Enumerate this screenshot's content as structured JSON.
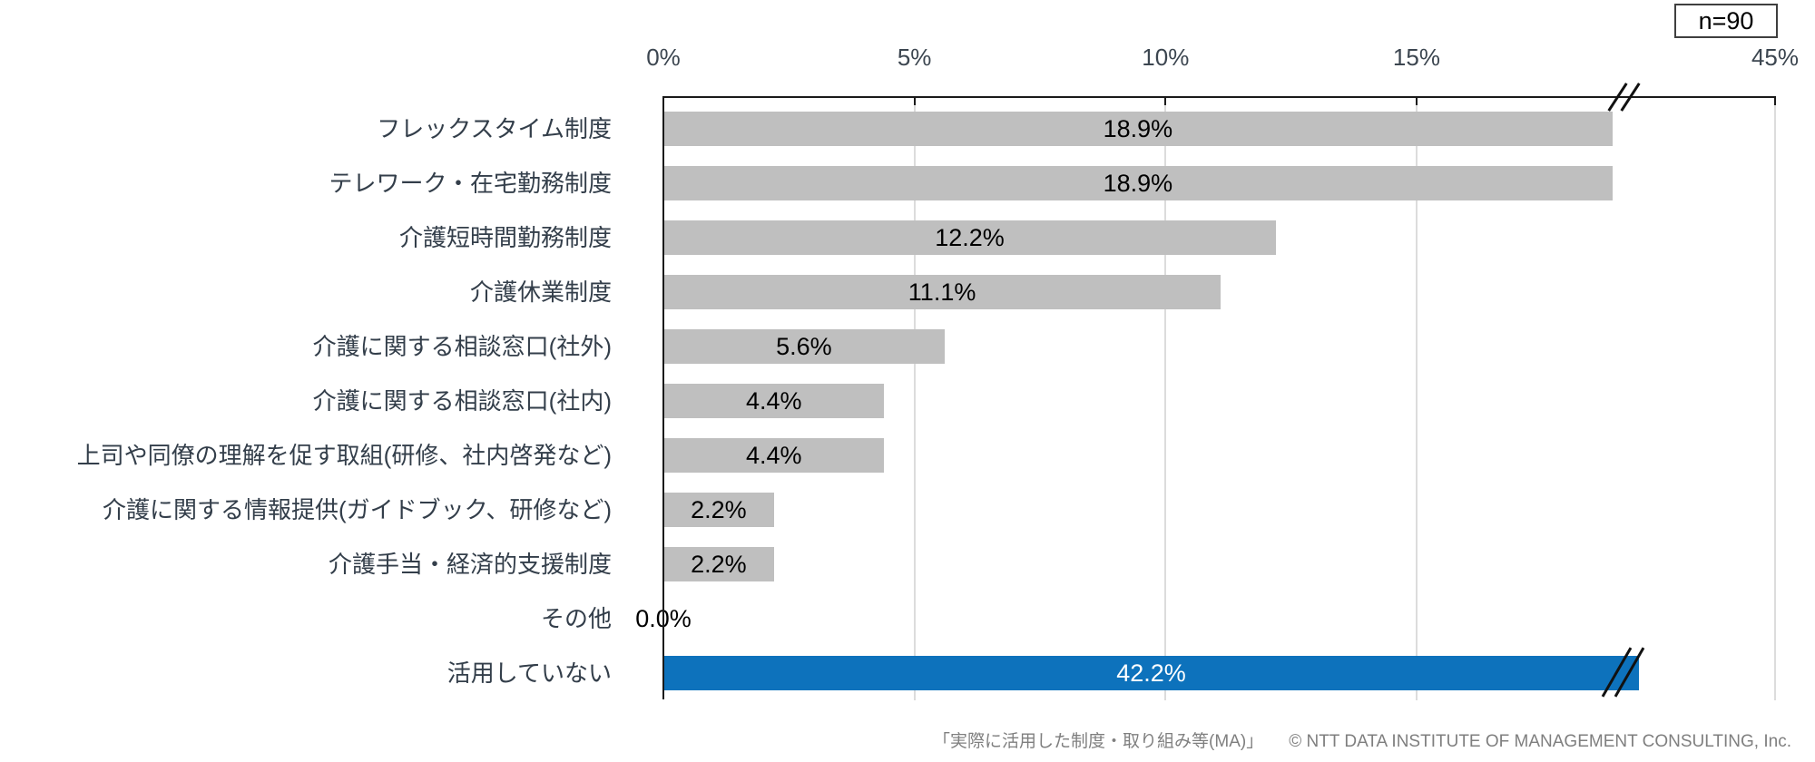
{
  "n_label": "n=90",
  "footer": {
    "source_label": "「実際に活用した制度・取り組み等(MA)」",
    "copyright": "© NTT DATA INSTITUTE OF MANAGEMENT CONSULTING, Inc."
  },
  "chart_data": {
    "type": "bar",
    "orientation": "horizontal",
    "title": "実際に活用した制度・取り組み等(MA)",
    "sample_size": 90,
    "categories": [
      "フレックスタイム制度",
      "テレワーク・在宅勤務制度",
      "介護短時間勤務制度",
      "介護休業制度",
      "介護に関する相談窓口(社外)",
      "介護に関する相談窓口(社内)",
      "上司や同僚の理解を促す取組(研修、社内啓発など)",
      "介護に関する情報提供(ガイドブック、研修など)",
      "介護手当・経済的支援制度",
      "その他",
      "活用していない"
    ],
    "values": [
      18.9,
      18.9,
      12.2,
      11.1,
      5.6,
      4.4,
      4.4,
      2.2,
      2.2,
      0.0,
      42.2
    ],
    "value_labels": [
      "18.9%",
      "18.9%",
      "12.2%",
      "11.1%",
      "5.6%",
      "4.4%",
      "4.4%",
      "2.2%",
      "2.2%",
      "0.0%",
      "42.2%"
    ],
    "highlight_index": 10,
    "axis": {
      "position": "top",
      "ticks": [
        "0%",
        "5%",
        "10%",
        "15%",
        "45%"
      ],
      "tick_values": [
        0,
        5,
        10,
        15,
        45
      ],
      "axis_break": true,
      "break_between": [
        19,
        45
      ],
      "gridlines": true
    },
    "colors": {
      "bar": "#BFBFBF",
      "highlight_bar": "#0D72BC",
      "value_label": "#000000",
      "highlight_value_label": "#FFFFFF",
      "axis_text": "#3C4650",
      "gridline": "#DCDCDC",
      "footer_text": "#7F7F7F"
    }
  }
}
